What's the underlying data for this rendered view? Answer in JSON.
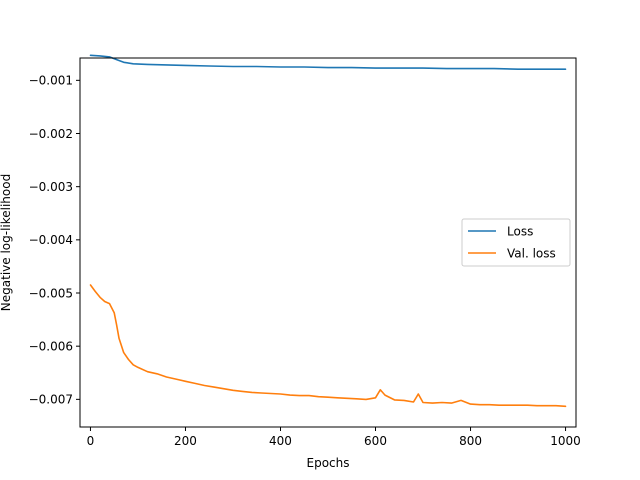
{
  "chart_data": {
    "type": "line",
    "title": "",
    "xlabel": "Epochs",
    "ylabel": "Negative log-likelihood",
    "xlim": [
      -22,
      1022
    ],
    "ylim": [
      -0.00752,
      -0.00058
    ],
    "xticks": [
      0,
      200,
      400,
      600,
      800,
      1000
    ],
    "xtick_labels": [
      "0",
      "200",
      "400",
      "600",
      "800",
      "1000"
    ],
    "yticks": [
      -0.007,
      -0.006,
      -0.005,
      -0.004,
      -0.003,
      -0.002,
      -0.001
    ],
    "ytick_labels": [
      "−0.007",
      "−0.006",
      "−0.005",
      "−0.004",
      "−0.003",
      "−0.002",
      "−0.001"
    ],
    "grid": false,
    "legend_position": "center-right",
    "series": [
      {
        "name": "Loss",
        "color": "#1f77b4",
        "x": [
          0,
          20,
          40,
          55,
          70,
          90,
          120,
          160,
          200,
          250,
          300,
          350,
          400,
          450,
          500,
          550,
          600,
          650,
          700,
          750,
          800,
          850,
          900,
          950,
          1000
        ],
        "y": [
          -0.00053,
          -0.00054,
          -0.00056,
          -0.00061,
          -0.00066,
          -0.00069,
          -0.0007,
          -0.00071,
          -0.00072,
          -0.00073,
          -0.00074,
          -0.00074,
          -0.00075,
          -0.00075,
          -0.00076,
          -0.00076,
          -0.00077,
          -0.00077,
          -0.00077,
          -0.00078,
          -0.00078,
          -0.00078,
          -0.00079,
          -0.00079,
          -0.00079
        ]
      },
      {
        "name": "Val. loss",
        "color": "#ff7f0e",
        "x": [
          0,
          10,
          20,
          30,
          40,
          50,
          55,
          60,
          70,
          80,
          90,
          100,
          120,
          140,
          160,
          180,
          200,
          220,
          240,
          260,
          280,
          300,
          320,
          340,
          360,
          380,
          400,
          420,
          440,
          460,
          480,
          500,
          520,
          540,
          560,
          580,
          600,
          610,
          620,
          640,
          660,
          680,
          690,
          700,
          720,
          740,
          760,
          780,
          800,
          820,
          840,
          860,
          880,
          900,
          920,
          940,
          960,
          980,
          1000
        ],
        "y": [
          -0.00485,
          -0.00497,
          -0.00508,
          -0.00516,
          -0.0052,
          -0.00537,
          -0.0056,
          -0.00585,
          -0.00612,
          -0.00625,
          -0.00635,
          -0.0064,
          -0.00648,
          -0.00652,
          -0.00658,
          -0.00662,
          -0.00666,
          -0.0067,
          -0.00674,
          -0.00677,
          -0.0068,
          -0.00683,
          -0.00685,
          -0.00687,
          -0.00688,
          -0.00689,
          -0.0069,
          -0.00692,
          -0.00693,
          -0.00693,
          -0.00695,
          -0.00696,
          -0.00697,
          -0.00698,
          -0.00699,
          -0.007,
          -0.00697,
          -0.00682,
          -0.00692,
          -0.00701,
          -0.00702,
          -0.00705,
          -0.0069,
          -0.00706,
          -0.00707,
          -0.00706,
          -0.00707,
          -0.00702,
          -0.00709,
          -0.0071,
          -0.0071,
          -0.00711,
          -0.00711,
          -0.00711,
          -0.00711,
          -0.00712,
          -0.00712,
          -0.00712,
          -0.00713
        ]
      }
    ]
  }
}
